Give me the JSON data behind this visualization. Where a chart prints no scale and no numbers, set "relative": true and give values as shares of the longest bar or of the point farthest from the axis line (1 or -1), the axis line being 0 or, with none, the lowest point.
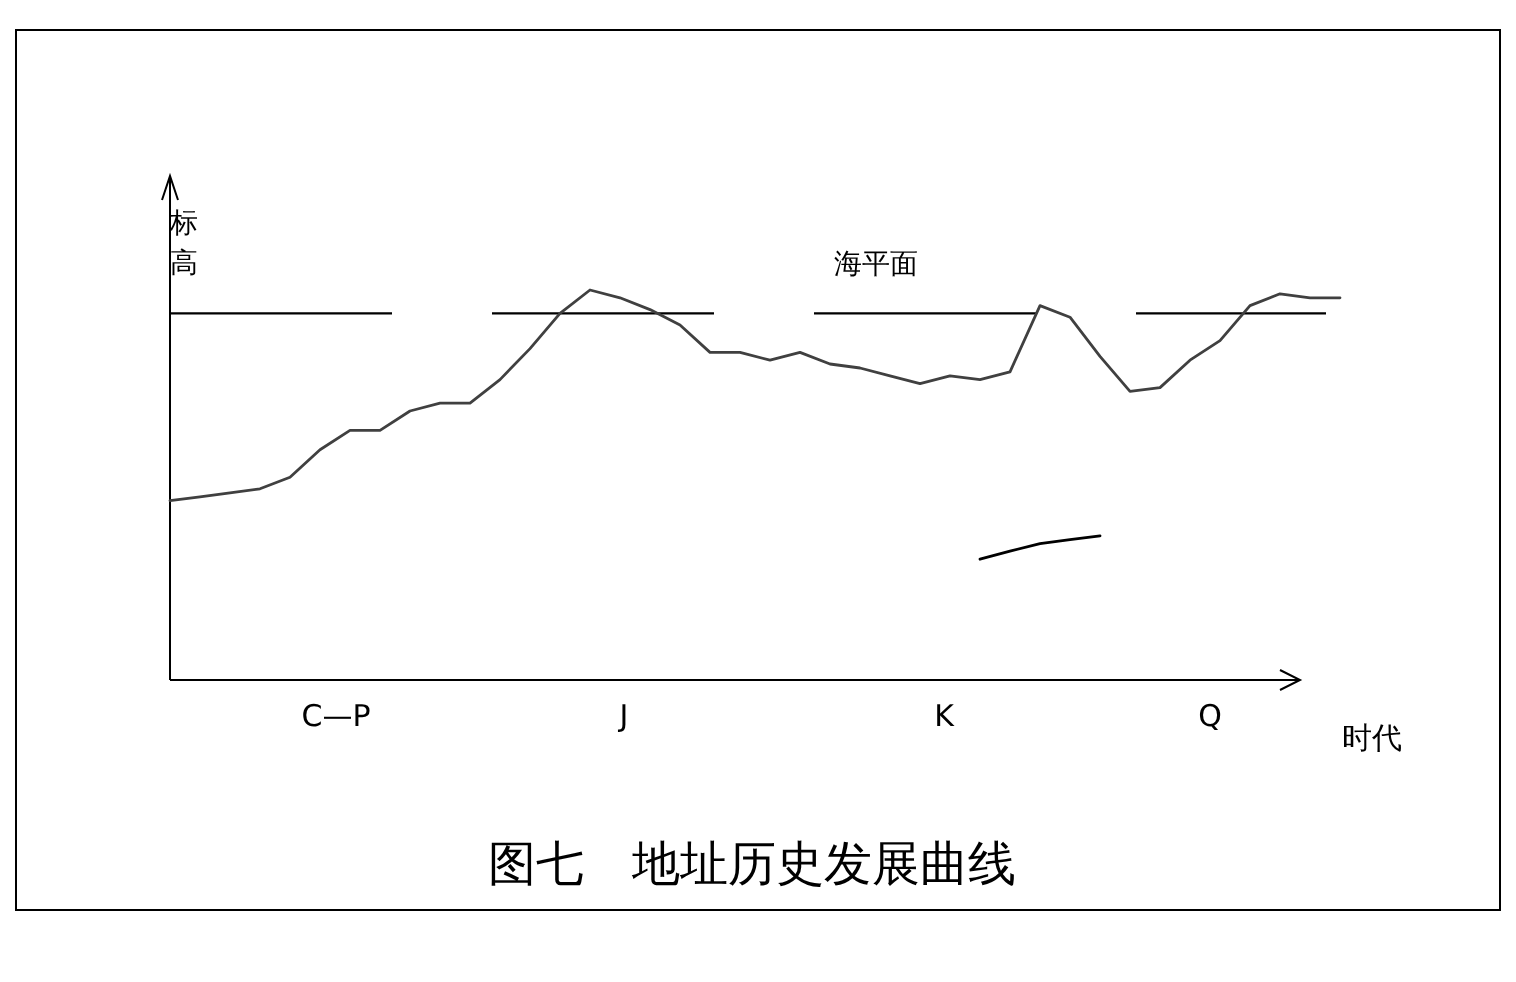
{
  "chart_data": {
    "type": "line",
    "relative": true,
    "title": "图七　地址历史发展曲线",
    "xlabel": "时代",
    "ylabel": "标高",
    "categories": [
      null,
      null,
      null,
      null,
      null,
      null,
      null,
      null,
      null,
      null,
      null,
      null,
      null,
      null,
      null,
      null,
      null,
      null,
      null,
      null,
      null,
      null,
      null,
      null,
      null,
      null,
      null,
      null,
      null,
      null,
      null,
      null,
      null,
      null,
      null,
      null,
      null,
      null,
      null,
      null
    ],
    "series": [
      {
        "color": "#404040",
        "values": [
          0.46,
          0.47,
          0.48,
          0.49,
          0.52,
          0.59,
          0.64,
          0.64,
          0.69,
          0.71,
          0.71,
          0.77,
          0.85,
          0.94,
          1.0,
          0.98,
          0.95,
          0.91,
          0.84,
          0.84,
          0.82,
          0.84,
          0.81,
          0.8,
          0.78,
          0.76,
          0.78,
          0.77,
          0.79,
          0.96,
          0.93,
          0.83,
          0.74,
          0.75,
          0.82,
          0.87,
          0.96,
          0.99,
          0.98,
          0.98
        ]
      },
      {
        "color": "#000000",
        "values": [
          null,
          null,
          null,
          null,
          null,
          null,
          null,
          null,
          null,
          null,
          null,
          null,
          null,
          null,
          null,
          null,
          null,
          null,
          null,
          null,
          null,
          null,
          null,
          null,
          null,
          null,
          null,
          0.31,
          0.33,
          0.35,
          0.36,
          0.37,
          null,
          null,
          null,
          null,
          null,
          null,
          null,
          null
        ]
      }
    ],
    "ref_lines": [
      {
        "axis": "y",
        "value": 0.94,
        "label": "海平面",
        "color": "#000000",
        "line_style": "dashed"
      }
    ],
    "annotations": [
      "C—P",
      "J",
      "K",
      "Q"
    ]
  }
}
